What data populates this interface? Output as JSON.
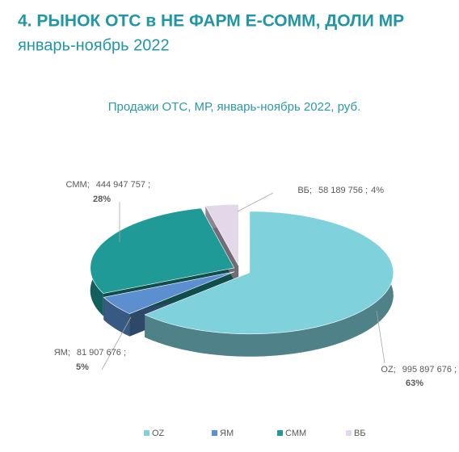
{
  "chart_data": {
    "type": "pie",
    "title": "4. РЫНОК ОТС в НЕ ФАРМ Е-СОММ, ДОЛИ МР",
    "subtitle": "январь-ноябрь 2022",
    "chart_title": "Продажи ОТС, МР, январь-ноябрь 2022, руб.",
    "categories": [
      "OZ",
      "ЯМ",
      "СММ",
      "ВБ"
    ],
    "values": [
      995897676,
      81907676,
      444947757,
      58189756
    ],
    "value_labels": [
      "995 897 676",
      "81 907 676",
      "444 947 757",
      "58 189 756"
    ],
    "shares": [
      63,
      5,
      28,
      4
    ],
    "share_labels": [
      "63%",
      "5%",
      "28%",
      "4%"
    ],
    "label_separator": ";",
    "colors": [
      "#7fd1dc",
      "#5b8fd0",
      "#1f9a96",
      "#e3d8ea"
    ],
    "legend": "bottom"
  }
}
